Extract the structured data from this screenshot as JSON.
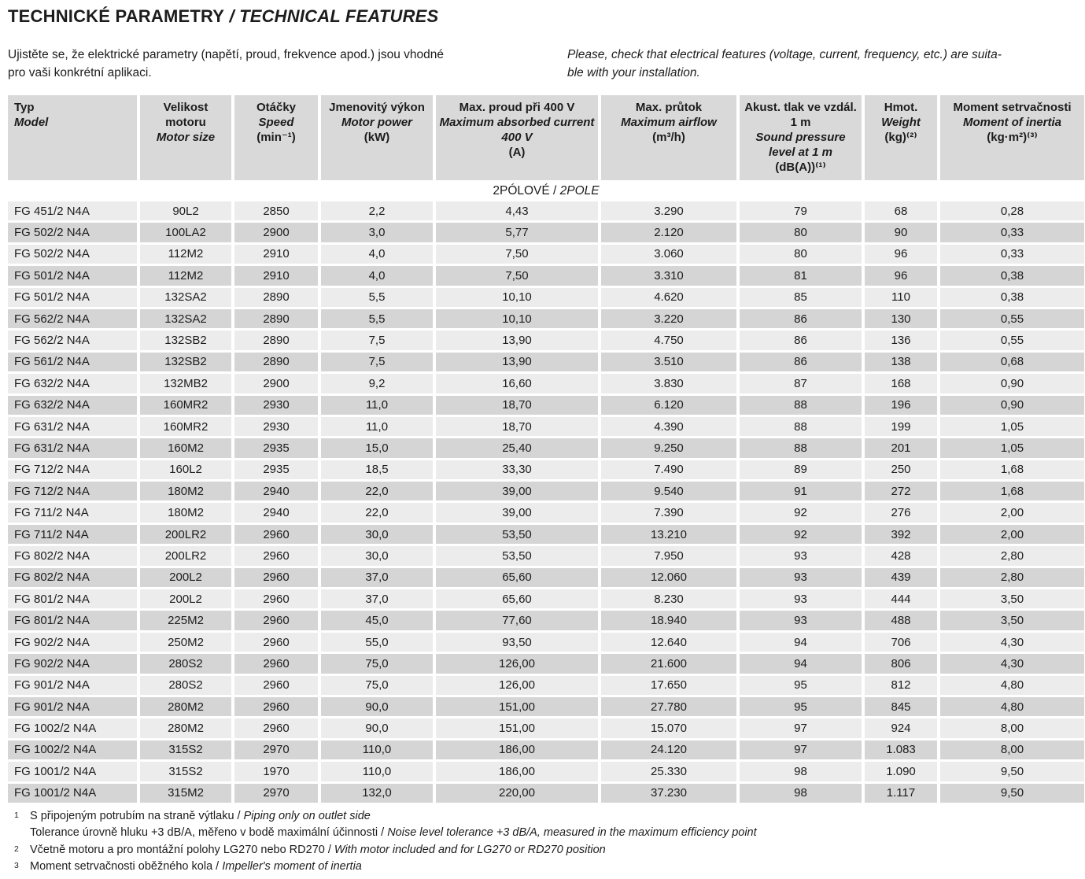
{
  "header": {
    "title_cz": "TECHNICKÉ PARAMETRY",
    "title_sep": " / ",
    "title_en": "TECHNICAL FEATURES",
    "intro_cz_line1": "Ujistěte se, že elektrické parametry (napětí, proud, frekvence apod.) jsou vhodné",
    "intro_cz_line2": "pro vaši konkrétní aplikaci.",
    "intro_en_line1": "Please, check that electrical features (voltage, current, frequency, etc.) are suita-",
    "intro_en_line2": "ble with your installation."
  },
  "colors": {
    "header_gray": "#d9d9d9",
    "row_light": "#ececec",
    "row_dark": "#d5d5d5"
  },
  "table": {
    "columns": [
      {
        "key": "typ",
        "cz": "Typ",
        "en": "Model",
        "unit": ""
      },
      {
        "key": "motor-size",
        "cz": "Velikost motoru",
        "en": "Motor size",
        "unit": ""
      },
      {
        "key": "speed",
        "cz": "Otáčky",
        "en": "Speed",
        "unit": "(min⁻¹)"
      },
      {
        "key": "power",
        "cz": "Jmenovitý výkon",
        "en": "Motor power",
        "unit": "(kW)"
      },
      {
        "key": "current",
        "cz": "Max. proud při 400 V",
        "en": "Maximum absorbed current 400 V",
        "unit": "(A)"
      },
      {
        "key": "airflow",
        "cz": "Max. průtok",
        "en": "Maximum airflow",
        "unit": "(m³/h)"
      },
      {
        "key": "sound",
        "cz": "Akust. tlak ve vzdál. 1 m",
        "en": "Sound pressure level at 1 m",
        "unit": "(dB(A))⁽¹⁾"
      },
      {
        "key": "weight",
        "cz": "Hmot.",
        "en": "Weight",
        "unit": "(kg)⁽²⁾"
      },
      {
        "key": "inertia",
        "cz": "Moment setrvačnosti",
        "en": "Moment of inertia",
        "unit": "(kg·m²)⁽³⁾"
      }
    ],
    "section": {
      "cz": "2PÓLOVÉ",
      "sep": " / ",
      "en": "2POLE"
    },
    "rows": [
      [
        "FG 451/2 N4A",
        "90L2",
        "2850",
        "2,2",
        "4,43",
        "3.290",
        "79",
        "68",
        "0,28"
      ],
      [
        "FG 502/2 N4A",
        "100LA2",
        "2900",
        "3,0",
        "5,77",
        "2.120",
        "80",
        "90",
        "0,33"
      ],
      [
        "FG 502/2 N4A",
        "112M2",
        "2910",
        "4,0",
        "7,50",
        "3.060",
        "80",
        "96",
        "0,33"
      ],
      [
        "FG 501/2 N4A",
        "112M2",
        "2910",
        "4,0",
        "7,50",
        "3.310",
        "81",
        "96",
        "0,38"
      ],
      [
        "FG 501/2 N4A",
        "132SA2",
        "2890",
        "5,5",
        "10,10",
        "4.620",
        "85",
        "110",
        "0,38"
      ],
      [
        "FG 562/2 N4A",
        "132SA2",
        "2890",
        "5,5",
        "10,10",
        "3.220",
        "86",
        "130",
        "0,55"
      ],
      [
        "FG 562/2 N4A",
        "132SB2",
        "2890",
        "7,5",
        "13,90",
        "4.750",
        "86",
        "136",
        "0,55"
      ],
      [
        "FG 561/2 N4A",
        "132SB2",
        "2890",
        "7,5",
        "13,90",
        "3.510",
        "86",
        "138",
        "0,68"
      ],
      [
        "FG 632/2 N4A",
        "132MB2",
        "2900",
        "9,2",
        "16,60",
        "3.830",
        "87",
        "168",
        "0,90"
      ],
      [
        "FG 632/2 N4A",
        "160MR2",
        "2930",
        "11,0",
        "18,70",
        "6.120",
        "88",
        "196",
        "0,90"
      ],
      [
        "FG 631/2 N4A",
        "160MR2",
        "2930",
        "11,0",
        "18,70",
        "4.390",
        "88",
        "199",
        "1,05"
      ],
      [
        "FG 631/2 N4A",
        "160M2",
        "2935",
        "15,0",
        "25,40",
        "9.250",
        "88",
        "201",
        "1,05"
      ],
      [
        "FG 712/2 N4A",
        "160L2",
        "2935",
        "18,5",
        "33,30",
        "7.490",
        "89",
        "250",
        "1,68"
      ],
      [
        "FG 712/2 N4A",
        "180M2",
        "2940",
        "22,0",
        "39,00",
        "9.540",
        "91",
        "272",
        "1,68"
      ],
      [
        "FG 711/2 N4A",
        "180M2",
        "2940",
        "22,0",
        "39,00",
        "7.390",
        "92",
        "276",
        "2,00"
      ],
      [
        "FG 711/2 N4A",
        "200LR2",
        "2960",
        "30,0",
        "53,50",
        "13.210",
        "92",
        "392",
        "2,00"
      ],
      [
        "FG 802/2 N4A",
        "200LR2",
        "2960",
        "30,0",
        "53,50",
        "7.950",
        "93",
        "428",
        "2,80"
      ],
      [
        "FG 802/2 N4A",
        "200L2",
        "2960",
        "37,0",
        "65,60",
        "12.060",
        "93",
        "439",
        "2,80"
      ],
      [
        "FG 801/2 N4A",
        "200L2",
        "2960",
        "37,0",
        "65,60",
        "8.230",
        "93",
        "444",
        "3,50"
      ],
      [
        "FG 801/2 N4A",
        "225M2",
        "2960",
        "45,0",
        "77,60",
        "18.940",
        "93",
        "488",
        "3,50"
      ],
      [
        "FG 902/2 N4A",
        "250M2",
        "2960",
        "55,0",
        "93,50",
        "12.640",
        "94",
        "706",
        "4,30"
      ],
      [
        "FG 902/2 N4A",
        "280S2",
        "2960",
        "75,0",
        "126,00",
        "21.600",
        "94",
        "806",
        "4,30"
      ],
      [
        "FG 901/2 N4A",
        "280S2",
        "2960",
        "75,0",
        "126,00",
        "17.650",
        "95",
        "812",
        "4,80"
      ],
      [
        "FG 901/2 N4A",
        "280M2",
        "2960",
        "90,0",
        "151,00",
        "27.780",
        "95",
        "845",
        "4,80"
      ],
      [
        "FG 1002/2 N4A",
        "280M2",
        "2960",
        "90,0",
        "151,00",
        "15.070",
        "97",
        "924",
        "8,00"
      ],
      [
        "FG 1002/2 N4A",
        "315S2",
        "2970",
        "110,0",
        "186,00",
        "24.120",
        "97",
        "1.083",
        "8,00"
      ],
      [
        "FG 1001/2 N4A",
        "315S2",
        "1970",
        "110,0",
        "186,00",
        "25.330",
        "98",
        "1.090",
        "9,50"
      ],
      [
        "FG 1001/2 N4A",
        "315M2",
        "2970",
        "132,0",
        "220,00",
        "37.230",
        "98",
        "1.117",
        "9,50"
      ]
    ]
  },
  "footnotes": [
    {
      "marker": "1",
      "lines": [
        {
          "cz": "S připojeným potrubím na straně výtlaku",
          "sep": " / ",
          "en": "Piping only on outlet side"
        },
        {
          "cz": "Tolerance úrovně hluku +3 dB/A, měřeno v bodě maximální účinnosti",
          "sep": " / ",
          "en": "Noise level tolerance +3 dB/A, measured in the maximum efficiency point"
        }
      ]
    },
    {
      "marker": "2",
      "lines": [
        {
          "cz": "Včetně motoru a pro montážní polohy LG270 nebo RD270",
          "sep": " / ",
          "en": "With motor included and for LG270 or RD270 position"
        }
      ]
    },
    {
      "marker": "3",
      "lines": [
        {
          "cz": "Moment setrvačnosti oběžného kola",
          "sep": " / ",
          "en": "Impeller's moment of inertia"
        }
      ]
    }
  ]
}
